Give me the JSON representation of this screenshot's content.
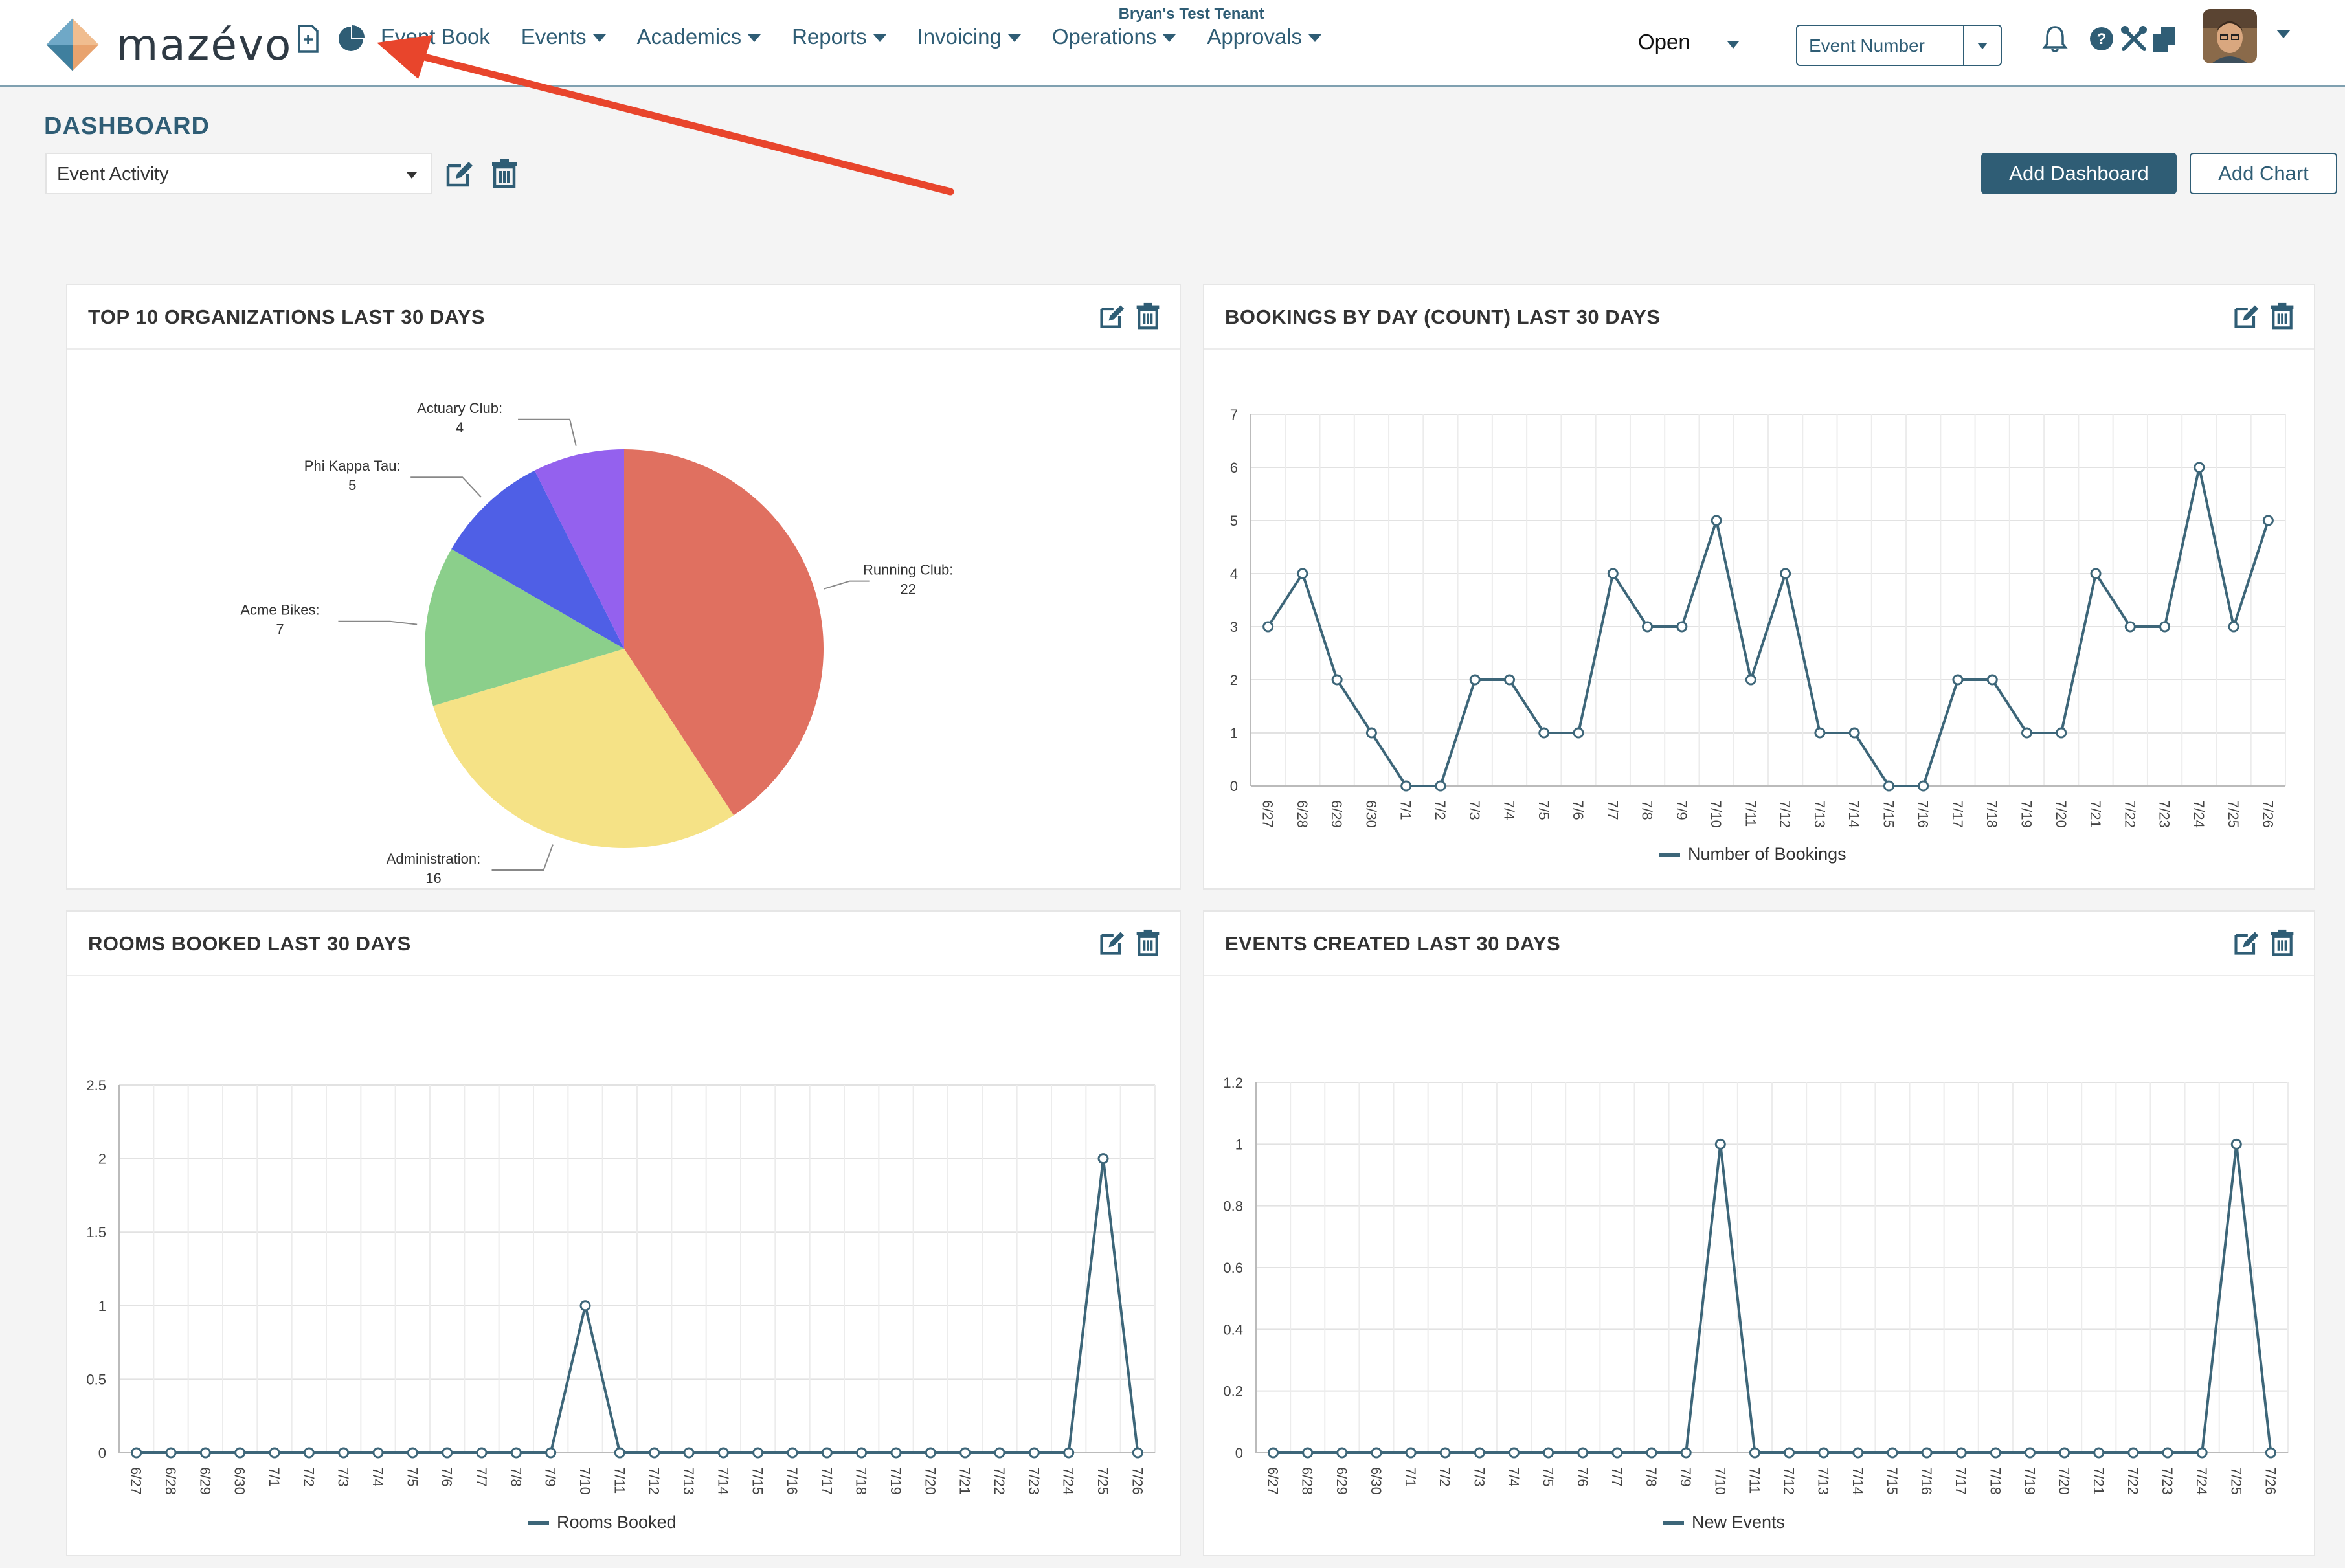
{
  "header": {
    "brand": "mazévo",
    "tenant": "Bryan's Test Tenant",
    "nav": [
      {
        "label": "Event Book",
        "caret": false
      },
      {
        "label": "Events",
        "caret": true
      },
      {
        "label": "Academics",
        "caret": true
      },
      {
        "label": "Reports",
        "caret": true
      },
      {
        "label": "Invoicing",
        "caret": true
      },
      {
        "label": "Operations",
        "caret": true
      },
      {
        "label": "Approvals",
        "caret": true
      }
    ],
    "status_select": "Open",
    "search_select": "Event Number",
    "icons": [
      "new-booking-icon",
      "dashboard-pie-icon",
      "bell-icon",
      "help-icon",
      "tools-icon",
      "copy-icon"
    ]
  },
  "dashboard": {
    "title": "DASHBOARD",
    "selected": "Event Activity",
    "add_dashboard": "Add Dashboard",
    "add_chart": "Add Chart"
  },
  "annotation": {
    "color": "#e8452c"
  },
  "colors": {
    "accent": "#2f5d75",
    "line": "#3d6679"
  },
  "cards": [
    {
      "title": "TOP 10 ORGANIZATIONS LAST 30 DAYS"
    },
    {
      "title": "BOOKINGS BY DAY (COUNT) LAST 30 DAYS"
    },
    {
      "title": "ROOMS BOOKED LAST 30 DAYS"
    },
    {
      "title": "EVENTS CREATED LAST 30 DAYS"
    }
  ],
  "chart_data": [
    {
      "type": "pie",
      "title": "TOP 10 ORGANIZATIONS LAST 30 DAYS",
      "slices": [
        {
          "label": "Running Club:",
          "value": 22,
          "color": "#e07060"
        },
        {
          "label": "Administration:",
          "value": 16,
          "color": "#f5e286"
        },
        {
          "label": "Acme Bikes:",
          "value": 7,
          "color": "#8bcf8b"
        },
        {
          "label": "Phi Kappa Tau:",
          "value": 5,
          "color": "#4f5fe6"
        },
        {
          "label": "Actuary Club:",
          "value": 4,
          "color": "#9461ee"
        }
      ]
    },
    {
      "type": "line",
      "title": "BOOKINGS BY DAY (COUNT) LAST 30 DAYS",
      "x": [
        "6/27",
        "6/28",
        "6/29",
        "6/30",
        "7/1",
        "7/2",
        "7/3",
        "7/4",
        "7/5",
        "7/6",
        "7/7",
        "7/8",
        "7/9",
        "7/10",
        "7/11",
        "7/12",
        "7/13",
        "7/14",
        "7/15",
        "7/16",
        "7/17",
        "7/18",
        "7/19",
        "7/20",
        "7/21",
        "7/22",
        "7/23",
        "7/24",
        "7/25",
        "7/26"
      ],
      "series": [
        {
          "name": "Number of Bookings",
          "values": [
            3,
            4,
            2,
            1,
            0,
            0,
            2,
            2,
            1,
            1,
            4,
            3,
            3,
            5,
            2,
            4,
            1,
            1,
            0,
            0,
            2,
            2,
            1,
            1,
            4,
            3,
            3,
            6,
            3,
            5
          ]
        }
      ],
      "yticks": [
        "0",
        "1",
        "2",
        "3",
        "4",
        "5",
        "6",
        "7"
      ],
      "ylim": [
        0,
        7
      ]
    },
    {
      "type": "line",
      "title": "ROOMS BOOKED LAST 30 DAYS",
      "x": [
        "6/27",
        "6/28",
        "6/29",
        "6/30",
        "7/1",
        "7/2",
        "7/3",
        "7/4",
        "7/5",
        "7/6",
        "7/7",
        "7/8",
        "7/9",
        "7/10",
        "7/11",
        "7/12",
        "7/13",
        "7/14",
        "7/15",
        "7/16",
        "7/17",
        "7/18",
        "7/19",
        "7/20",
        "7/21",
        "7/22",
        "7/23",
        "7/24",
        "7/25",
        "7/26"
      ],
      "series": [
        {
          "name": "Rooms Booked",
          "values": [
            0,
            0,
            0,
            0,
            0,
            0,
            0,
            0,
            0,
            0,
            0,
            0,
            0,
            1,
            0,
            0,
            0,
            0,
            0,
            0,
            0,
            0,
            0,
            0,
            0,
            0,
            0,
            0,
            2,
            0
          ]
        }
      ],
      "yticks": [
        "0",
        "0.5",
        "1",
        "1.5",
        "2",
        "2.5"
      ],
      "ylim": [
        0,
        2.5
      ]
    },
    {
      "type": "line",
      "title": "EVENTS CREATED LAST 30 DAYS",
      "x": [
        "6/27",
        "6/28",
        "6/29",
        "6/30",
        "7/1",
        "7/2",
        "7/3",
        "7/4",
        "7/5",
        "7/6",
        "7/7",
        "7/8",
        "7/9",
        "7/10",
        "7/11",
        "7/12",
        "7/13",
        "7/14",
        "7/15",
        "7/16",
        "7/17",
        "7/18",
        "7/19",
        "7/20",
        "7/21",
        "7/22",
        "7/23",
        "7/24",
        "7/25",
        "7/26"
      ],
      "series": [
        {
          "name": "New Events",
          "values": [
            0,
            0,
            0,
            0,
            0,
            0,
            0,
            0,
            0,
            0,
            0,
            0,
            0,
            1,
            0,
            0,
            0,
            0,
            0,
            0,
            0,
            0,
            0,
            0,
            0,
            0,
            0,
            0,
            1,
            0
          ]
        }
      ],
      "yticks": [
        "0",
        "0.2",
        "0.4",
        "0.6",
        "0.8",
        "1",
        "1.2"
      ],
      "ylim": [
        0,
        1.2
      ]
    }
  ]
}
